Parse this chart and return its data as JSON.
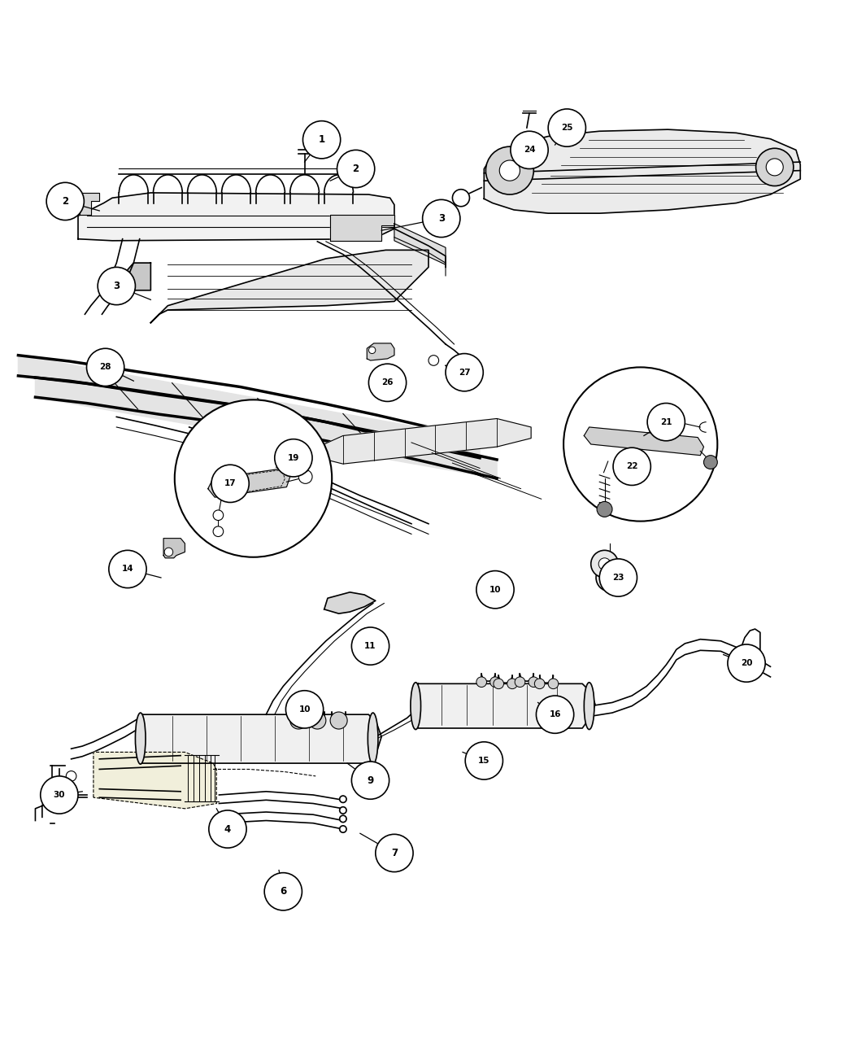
{
  "background_color": "#ffffff",
  "line_color": "#000000",
  "fig_width": 10.54,
  "fig_height": 12.77,
  "callouts": [
    [
      1,
      0.375,
      0.944,
      0.355,
      0.918
    ],
    [
      2,
      0.415,
      0.91,
      0.385,
      0.896
    ],
    [
      2,
      0.075,
      0.872,
      0.115,
      0.861
    ],
    [
      3,
      0.515,
      0.852,
      0.445,
      0.838
    ],
    [
      3,
      0.135,
      0.773,
      0.175,
      0.757
    ],
    [
      4,
      0.265,
      0.138,
      0.252,
      0.162
    ],
    [
      6,
      0.33,
      0.065,
      0.325,
      0.09
    ],
    [
      7,
      0.46,
      0.11,
      0.42,
      0.133
    ],
    [
      9,
      0.432,
      0.195,
      0.405,
      0.215
    ],
    [
      10,
      0.355,
      0.278,
      0.358,
      0.264
    ],
    [
      10,
      0.578,
      0.418,
      0.573,
      0.402
    ],
    [
      11,
      0.432,
      0.352,
      0.415,
      0.342
    ],
    [
      14,
      0.148,
      0.442,
      0.187,
      0.432
    ],
    [
      15,
      0.565,
      0.218,
      0.54,
      0.228
    ],
    [
      16,
      0.648,
      0.272,
      0.628,
      0.286
    ],
    [
      17,
      0.268,
      0.542,
      0.278,
      0.553
    ],
    [
      19,
      0.342,
      0.572,
      0.322,
      0.561
    ],
    [
      20,
      0.872,
      0.332,
      0.845,
      0.342
    ],
    [
      21,
      0.778,
      0.614,
      0.752,
      0.598
    ],
    [
      22,
      0.738,
      0.562,
      0.722,
      0.552
    ],
    [
      23,
      0.722,
      0.432,
      0.705,
      0.442
    ],
    [
      24,
      0.618,
      0.932,
      0.612,
      0.912
    ],
    [
      25,
      0.662,
      0.958,
      0.648,
      0.938
    ],
    [
      26,
      0.452,
      0.66,
      0.44,
      0.672
    ],
    [
      27,
      0.542,
      0.672,
      0.528,
      0.665
    ],
    [
      28,
      0.122,
      0.678,
      0.155,
      0.662
    ],
    [
      30,
      0.068,
      0.178,
      0.095,
      0.182
    ]
  ]
}
